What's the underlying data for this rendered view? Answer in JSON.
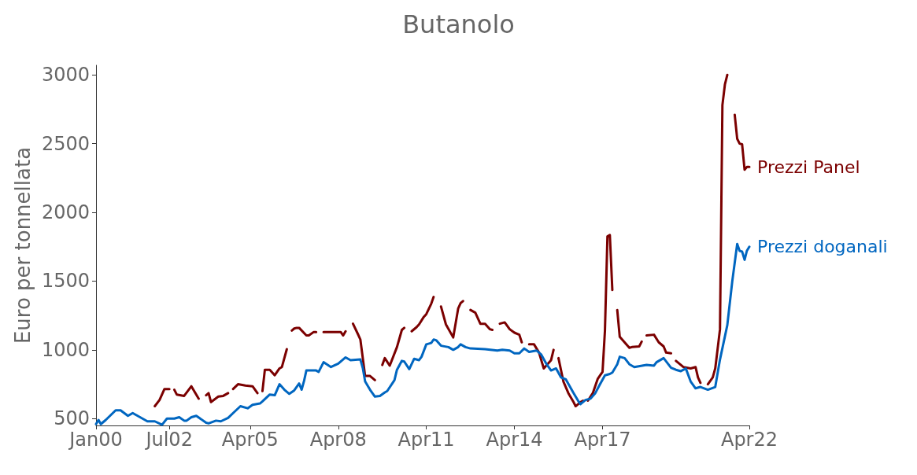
{
  "chart_data": {
    "type": "line",
    "title": "Butanolo",
    "ylabel": "Euro per tonnellata",
    "xlim": [
      "2000-01",
      "2022-04"
    ],
    "xticks": [
      {
        "value": "2000-01",
        "label": "Jan00"
      },
      {
        "value": "2002-07",
        "label": "Jul02"
      },
      {
        "value": "2005-04",
        "label": "Apr05"
      },
      {
        "value": "2008-04",
        "label": "Apr08"
      },
      {
        "value": "2011-04",
        "label": "Apr11"
      },
      {
        "value": "2014-04",
        "label": "Apr14"
      },
      {
        "value": "2017-04",
        "label": "Apr17"
      },
      {
        "value": "2022-04",
        "label": "Apr22"
      }
    ],
    "ylim": [
      450,
      3070
    ],
    "yticks": [
      500,
      1000,
      1500,
      2000,
      2500,
      3000
    ],
    "grid": false,
    "legend": false,
    "marker": "none",
    "line_style": "solid",
    "series": [
      {
        "name": "Prezzi Panel",
        "color": "#7b0000",
        "x": [
          "2002-01",
          "2002-03",
          "2002-05",
          "2002-07",
          "2002-08",
          "2002-09",
          "2002-10",
          "2003-01",
          "2003-04",
          "2003-07",
          "2003-08",
          "2003-10",
          "2003-11",
          "2003-12",
          "2004-03",
          "2004-05",
          "2004-07",
          "2004-08",
          "2004-09",
          "2004-11",
          "2005-02",
          "2005-05",
          "2005-07",
          "2005-08",
          "2005-09",
          "2005-10",
          "2005-12",
          "2006-02",
          "2006-04",
          "2006-05",
          "2006-07",
          "2006-08",
          "2006-09",
          "2006-10",
          "2006-11",
          "2006-12",
          "2007-03",
          "2007-04",
          "2007-06",
          "2007-07",
          "2007-08",
          "2007-10",
          "2008-05",
          "2008-06",
          "2008-07",
          "2008-08",
          "2008-10",
          "2008-12",
          "2009-01",
          "2009-03",
          "2009-05",
          "2009-07",
          "2009-08",
          "2009-10",
          "2009-11",
          "2010-01",
          "2010-04",
          "2010-06",
          "2010-07",
          "2010-08",
          "2010-10",
          "2010-12",
          "2011-01",
          "2011-03",
          "2011-04",
          "2011-06",
          "2011-07",
          "2011-08",
          "2011-10",
          "2011-12",
          "2012-03",
          "2012-05",
          "2012-06",
          "2012-07",
          "2012-08",
          "2012-10",
          "2012-12",
          "2013-02",
          "2013-04",
          "2013-06",
          "2013-07",
          "2013-08",
          "2013-10",
          "2013-12",
          "2014-02",
          "2014-04",
          "2014-06",
          "2014-07",
          "2014-08",
          "2014-10",
          "2014-12",
          "2015-02",
          "2015-04",
          "2015-07",
          "2015-08",
          "2015-09",
          "2015-10",
          "2015-12",
          "2016-02",
          "2016-04",
          "2016-05",
          "2016-07",
          "2016-08",
          "2016-09",
          "2016-10",
          "2016-12",
          "2017-02",
          "2017-04",
          "2017-05",
          "2017-06",
          "2017-07",
          "2017-08",
          "2017-09",
          "2017-10",
          "2017-11",
          "2018-03",
          "2018-04",
          "2018-07",
          "2018-08",
          "2018-09",
          "2018-10",
          "2019-01",
          "2019-03",
          "2019-05",
          "2019-06",
          "2019-08",
          "2019-09",
          "2019-10",
          "2020-01",
          "2020-04",
          "2020-06",
          "2020-07",
          "2020-08",
          "2020-09",
          "2020-11",
          "2021-01",
          "2021-02",
          "2021-03",
          "2021-04",
          "2021-05",
          "2021-06",
          "2021-07",
          "2021-08",
          "2021-10",
          "2021-11",
          "2021-12",
          "2022-01",
          "2022-02",
          "2022-03",
          "2022-04"
        ],
        "values": [
          590,
          635,
          715,
          715,
          null,
          710,
          675,
          665,
          735,
          645,
          null,
          670,
          685,
          620,
          660,
          665,
          685,
          null,
          715,
          750,
          740,
          735,
          685,
          null,
          700,
          855,
          855,
          815,
          865,
          875,
          1005,
          null,
          1140,
          1155,
          1160,
          1160,
          1105,
          1105,
          1130,
          1130,
          null,
          1130,
          1130,
          1105,
          1135,
          null,
          1190,
          1115,
          1075,
          810,
          810,
          780,
          null,
          890,
          940,
          885,
          1020,
          1145,
          1160,
          null,
          1135,
          1165,
          1185,
          1240,
          1260,
          1335,
          1385,
          null,
          1315,
          1185,
          1090,
          1300,
          1340,
          1355,
          null,
          1290,
          1270,
          1190,
          1190,
          1150,
          1145,
          null,
          1190,
          1200,
          1150,
          1125,
          1110,
          1055,
          null,
          1040,
          1040,
          980,
          865,
          925,
          1000,
          null,
          940,
          770,
          685,
          625,
          590,
          620,
          630,
          null,
          630,
          685,
          790,
          840,
          1140,
          1825,
          1835,
          1435,
          null,
          1290,
          1095,
          1015,
          1020,
          1025,
          1060,
          null,
          1105,
          1110,
          1055,
          1025,
          980,
          975,
          null,
          920,
          875,
          865,
          875,
          800,
          760,
          null,
          750,
          800,
          865,
          1000,
          1150,
          2780,
          2930,
          3000,
          null,
          2710,
          2535,
          2500,
          2495,
          2310,
          2330,
          2330
        ]
      },
      {
        "name": "Prezzi doganali",
        "color": "#0066c0",
        "x": [
          "2000-01",
          "2000-02",
          "2000-03",
          "2000-05",
          "2000-09",
          "2000-11",
          "2001-02",
          "2001-04",
          "2001-08",
          "2001-10",
          "2002-01",
          "2002-04",
          "2002-06",
          "2002-09",
          "2002-11",
          "2003-01",
          "2003-02",
          "2003-04",
          "2003-06",
          "2003-10",
          "2003-11",
          "2004-02",
          "2004-04",
          "2004-07",
          "2004-09",
          "2004-12",
          "2005-03",
          "2005-05",
          "2005-08",
          "2005-09",
          "2005-12",
          "2006-02",
          "2006-04",
          "2006-06",
          "2006-08",
          "2006-10",
          "2006-12",
          "2007-01",
          "2007-02",
          "2007-03",
          "2007-07",
          "2007-08",
          "2007-10",
          "2008-01",
          "2008-04",
          "2008-07",
          "2008-09",
          "2009-01",
          "2009-02",
          "2009-03",
          "2009-05",
          "2009-07",
          "2009-09",
          "2009-11",
          "2009-12",
          "2010-03",
          "2010-04",
          "2010-06",
          "2010-07",
          "2010-09",
          "2010-11",
          "2011-01",
          "2011-02",
          "2011-04",
          "2011-06",
          "2011-07",
          "2011-08",
          "2011-10",
          "2012-01",
          "2012-03",
          "2012-05",
          "2012-06",
          "2012-08",
          "2012-10",
          "2013-04",
          "2013-09",
          "2013-11",
          "2014-02",
          "2014-04",
          "2014-06",
          "2014-08",
          "2014-10",
          "2015-01",
          "2015-03",
          "2015-05",
          "2015-07",
          "2015-09",
          "2015-11",
          "2016-01",
          "2016-04",
          "2016-06",
          "2016-07",
          "2016-09",
          "2016-11",
          "2017-01",
          "2017-03",
          "2017-05",
          "2017-07",
          "2017-08",
          "2017-10",
          "2017-11",
          "2018-01",
          "2018-03",
          "2018-05",
          "2018-10",
          "2019-01",
          "2019-02",
          "2019-05",
          "2019-08",
          "2019-10",
          "2019-12",
          "2020-02",
          "2020-04",
          "2020-06",
          "2020-08",
          "2020-11",
          "2021-02",
          "2021-04",
          "2021-07",
          "2021-09",
          "2021-11",
          "2021-12",
          "2022-01",
          "2022-02",
          "2022-03",
          "2022-04"
        ],
        "values": [
          460,
          490,
          460,
          490,
          560,
          560,
          520,
          540,
          500,
          480,
          480,
          455,
          500,
          500,
          510,
          485,
          485,
          510,
          520,
          470,
          465,
          485,
          480,
          505,
          540,
          590,
          575,
          600,
          610,
          625,
          675,
          670,
          750,
          710,
          680,
          705,
          755,
          710,
          775,
          850,
          850,
          840,
          910,
          875,
          900,
          945,
          925,
          930,
          865,
          770,
          710,
          660,
          665,
          690,
          700,
          780,
          855,
          920,
          915,
          860,
          935,
          925,
          950,
          1040,
          1050,
          1075,
          1070,
          1030,
          1020,
          1000,
          1020,
          1040,
          1020,
          1010,
          1005,
          995,
          1000,
          995,
          975,
          975,
          1010,
          985,
          995,
          965,
          900,
          850,
          865,
          800,
          785,
          690,
          630,
          605,
          635,
          645,
          685,
          750,
          815,
          825,
          835,
          895,
          950,
          940,
          895,
          875,
          890,
          885,
          910,
          940,
          870,
          855,
          845,
          864,
          770,
          720,
          730,
          710,
          730,
          930,
          1180,
          1500,
          1770,
          1720,
          1715,
          1655,
          1720,
          1750
        ]
      }
    ]
  }
}
